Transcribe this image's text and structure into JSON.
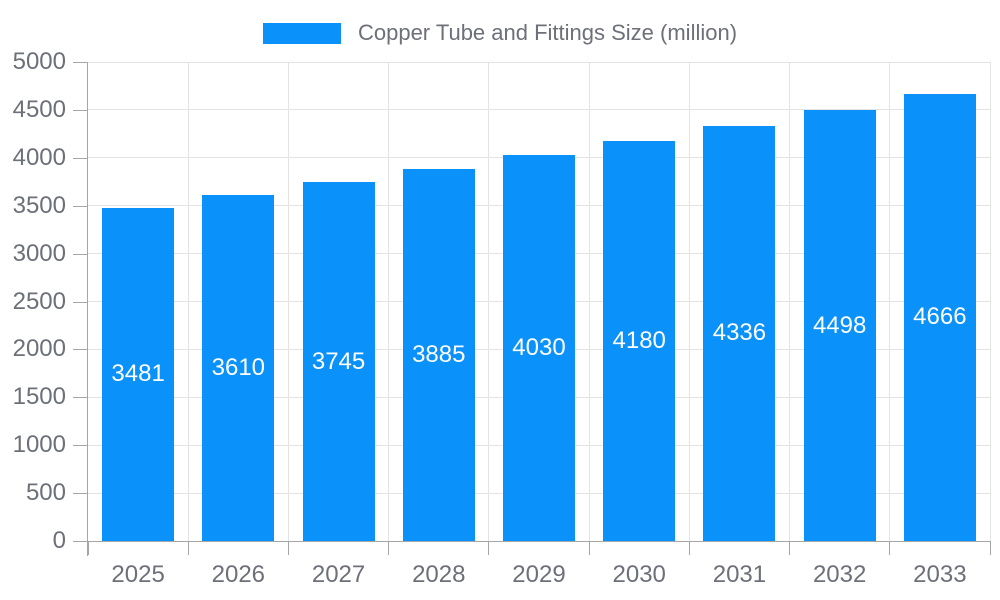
{
  "chart_data": {
    "type": "bar",
    "title": "Copper Tube and Fittings Size (million)",
    "legend": {
      "position": "top",
      "items": [
        "Copper Tube and Fittings Size (million)"
      ]
    },
    "categories": [
      "2025",
      "2026",
      "2027",
      "2028",
      "2029",
      "2030",
      "2031",
      "2032",
      "2033"
    ],
    "values": [
      3481,
      3610,
      3745,
      3885,
      4030,
      4180,
      4336,
      4498,
      4666
    ],
    "value_labels_visible": true,
    "xlabel": "",
    "ylabel": "",
    "ylim": [
      0,
      5000
    ],
    "yticks": [
      0,
      500,
      1000,
      1500,
      2000,
      2500,
      3000,
      3500,
      4000,
      4500,
      5000
    ],
    "grid": true,
    "colors": {
      "bar": "#0a91fa",
      "value_label": "#ffffff",
      "axis_text": "#6e7079",
      "grid_line": "#e3e3e3",
      "axis_line": "#a6a6a6",
      "background": "#ffffff"
    }
  }
}
